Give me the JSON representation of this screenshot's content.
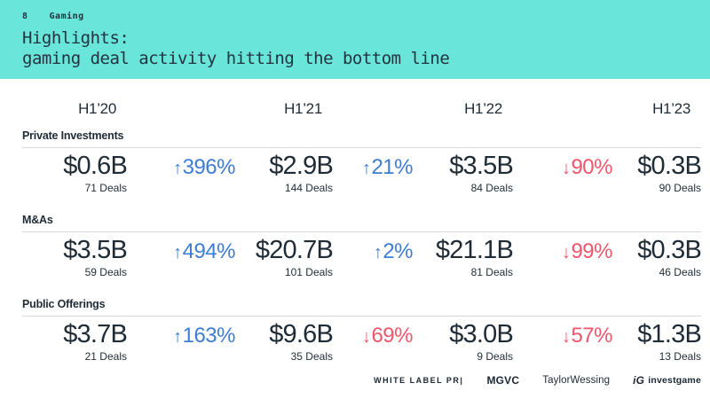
{
  "slide": {
    "page_number": "8",
    "section_tag": "Gaming",
    "title_line1": "Highlights:",
    "title_line2": "gaming deal activity hitting the bottom line"
  },
  "columns": [
    "H1’20",
    "H1’21",
    "H1’22",
    "H1’23"
  ],
  "sections": [
    {
      "label": "Private Investments",
      "values": [
        {
          "amount": "$0.6B",
          "deals": "71 Deals"
        },
        {
          "amount": "$2.9B",
          "deals": "144 Deals"
        },
        {
          "amount": "$3.5B",
          "deals": "84 Deals"
        },
        {
          "amount": "$0.3B",
          "deals": "90 Deals"
        }
      ],
      "changes": [
        {
          "arrow": "↑",
          "percent": "396%",
          "direction": "up"
        },
        {
          "arrow": "↑",
          "percent": "21%",
          "direction": "up"
        },
        {
          "arrow": "↓",
          "percent": "90%",
          "direction": "down"
        }
      ]
    },
    {
      "label": "M&As",
      "values": [
        {
          "amount": "$3.5B",
          "deals": "59 Deals"
        },
        {
          "amount": "$20.7B",
          "deals": "101 Deals"
        },
        {
          "amount": "$21.1B",
          "deals": "81 Deals"
        },
        {
          "amount": "$0.3B",
          "deals": "46 Deals"
        }
      ],
      "changes": [
        {
          "arrow": "↑",
          "percent": "494%",
          "direction": "up"
        },
        {
          "arrow": "↑",
          "percent": "2%",
          "direction": "up"
        },
        {
          "arrow": "↓",
          "percent": "99%",
          "direction": "down"
        }
      ]
    },
    {
      "label": "Public Offerings",
      "values": [
        {
          "amount": "$3.7B",
          "deals": "21 Deals"
        },
        {
          "amount": "$9.6B",
          "deals": "35 Deals"
        },
        {
          "amount": "$3.0B",
          "deals": "9 Deals"
        },
        {
          "amount": "$1.3B",
          "deals": "13 Deals"
        }
      ],
      "changes": [
        {
          "arrow": "↑",
          "percent": "163%",
          "direction": "up"
        },
        {
          "arrow": "↓",
          "percent": "69%",
          "direction": "down"
        },
        {
          "arrow": "↓",
          "percent": "57%",
          "direction": "down"
        }
      ]
    }
  ],
  "chart_data": {
    "type": "table",
    "title": "Highlights: gaming deal activity hitting the bottom line",
    "columns": [
      "H1'20",
      "H1'21",
      "H1'22",
      "H1'23"
    ],
    "rows": [
      {
        "category": "Private Investments",
        "value_usd_b": [
          0.6,
          2.9,
          3.5,
          0.3
        ],
        "deals": [
          71,
          144,
          84,
          90
        ],
        "change_pct": [
          396,
          21,
          -90
        ]
      },
      {
        "category": "M&As",
        "value_usd_b": [
          3.5,
          20.7,
          21.1,
          0.3
        ],
        "deals": [
          59,
          101,
          81,
          46
        ],
        "change_pct": [
          494,
          2,
          -99
        ]
      },
      {
        "category": "Public Offerings",
        "value_usd_b": [
          3.7,
          9.6,
          3.0,
          1.3
        ],
        "deals": [
          21,
          35,
          9,
          13
        ],
        "change_pct": [
          163,
          -69,
          -57
        ]
      }
    ]
  },
  "footer": {
    "logos": {
      "white_label_pr": "WHITE LABEL PR|",
      "mgvc": "MGVC",
      "taylor_wessing": "TaylorWessing",
      "investgame_icon": "iG",
      "investgame": "investgame"
    }
  },
  "colors": {
    "band": "#69E5DA",
    "text": "#1F2B35",
    "up": "#3D7DD2",
    "down": "#F0556A",
    "rule": "#D8D8D8"
  }
}
